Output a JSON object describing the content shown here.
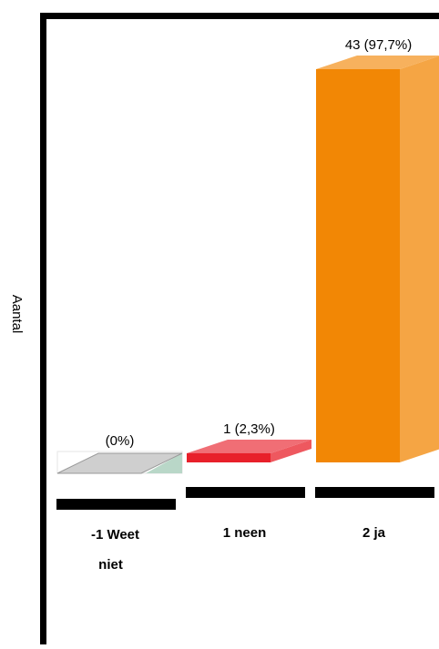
{
  "chart_data": {
    "type": "bar",
    "ylabel": "Aantal",
    "categories": [
      "-1 Weet niet",
      "1 neen",
      "2 ja"
    ],
    "category_lines": [
      [
        "-1 Weet",
        "niet"
      ],
      [
        "1 neen"
      ],
      [
        "2 ja"
      ]
    ],
    "values": [
      0,
      1,
      43
    ],
    "percent": [
      0,
      2.3,
      97.7
    ],
    "data_labels": [
      "(0%)",
      "1 (2,3%)",
      "43 (97,7%)"
    ],
    "colors": {
      "-1 Weet niet": "#cfcfcf",
      "1 neen": "#e8202a",
      "2 ja": "#f28705"
    },
    "ylim": [
      0,
      43
    ],
    "grid": false,
    "legend": "none"
  }
}
